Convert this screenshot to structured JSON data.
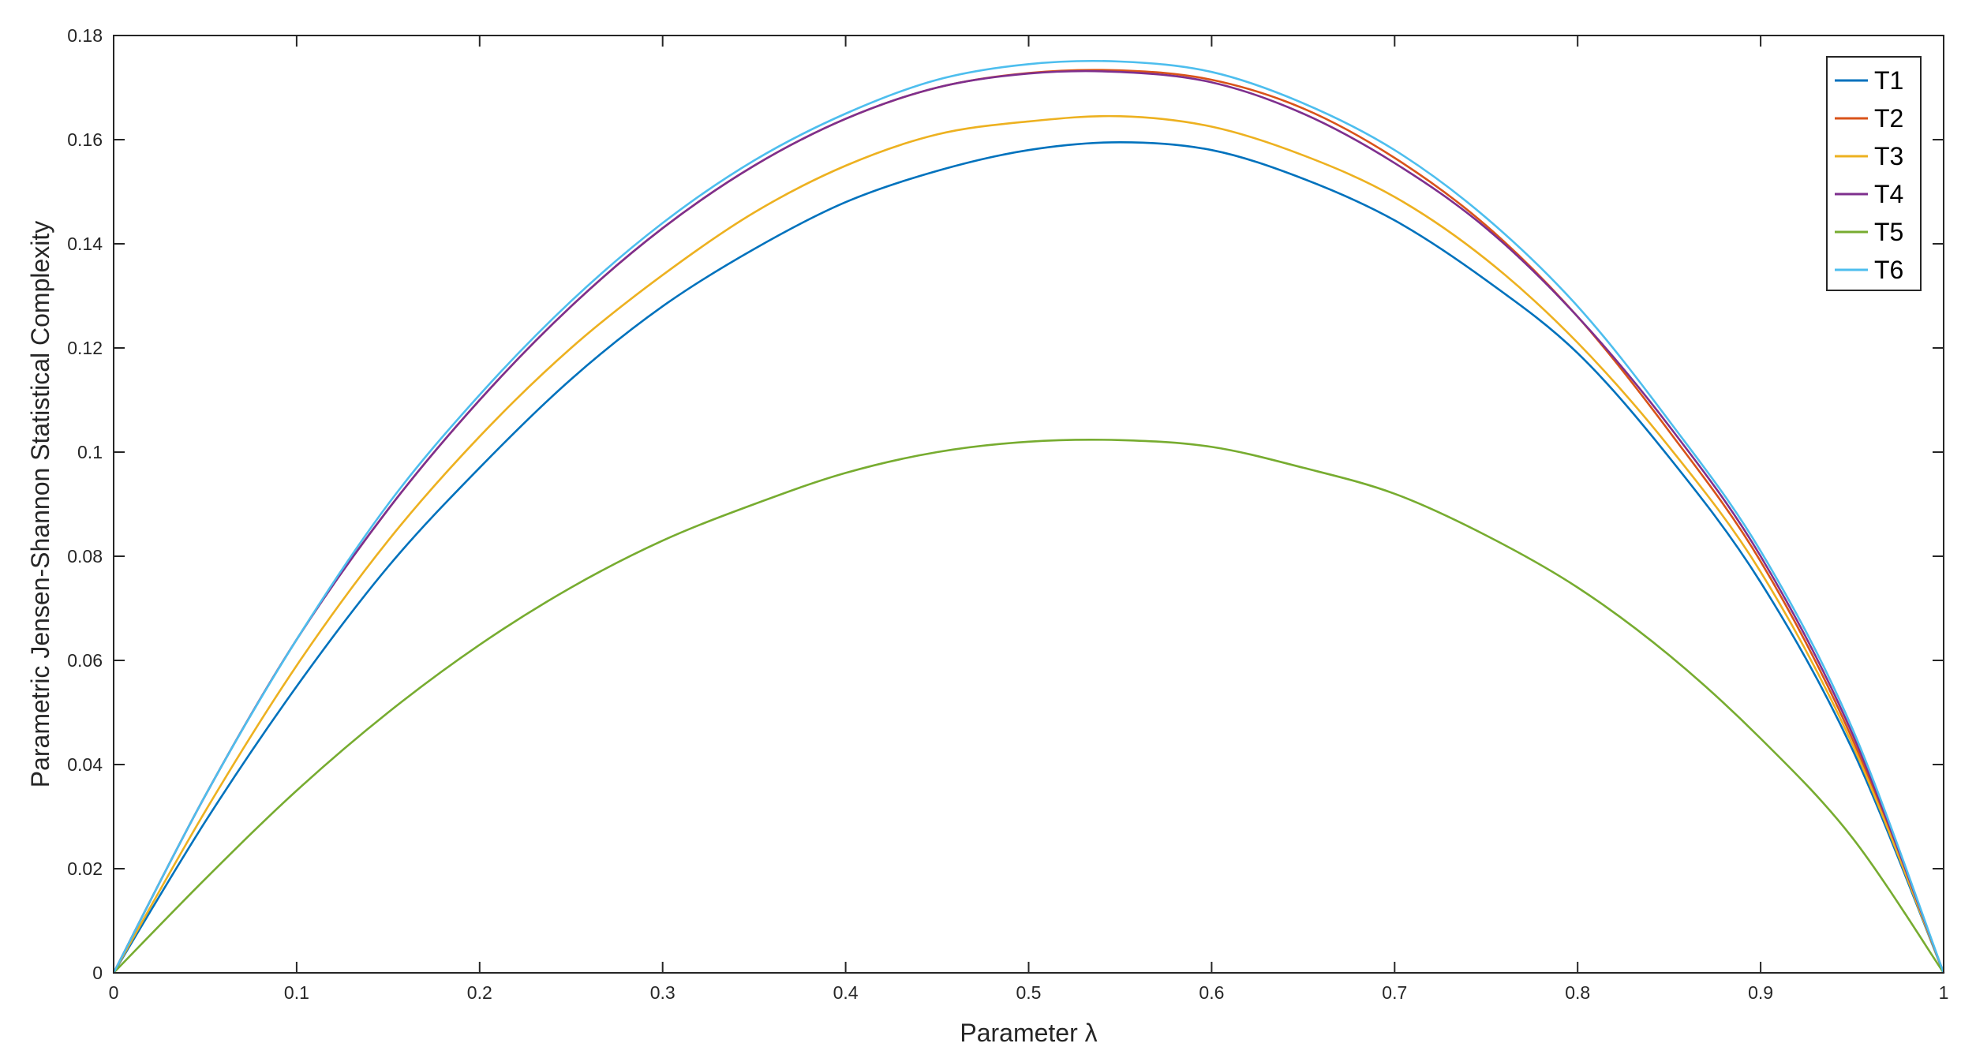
{
  "chart_data": {
    "type": "line",
    "title": "",
    "xlabel": "Parameter λ",
    "ylabel": "Parametric Jensen-Shannon Statistical Complexity",
    "xlim": [
      0,
      1
    ],
    "ylim": [
      0,
      0.18
    ],
    "grid": false,
    "legend_position": "top-right",
    "x_ticks": [
      "0",
      "0.1",
      "0.2",
      "0.3",
      "0.4",
      "0.5",
      "0.6",
      "0.7",
      "0.8",
      "0.9",
      "1"
    ],
    "y_ticks": [
      "0",
      "0.02",
      "0.04",
      "0.06",
      "0.08",
      "0.1",
      "0.12",
      "0.14",
      "0.16",
      "0.18"
    ],
    "x": [
      0,
      0.05,
      0.1,
      0.15,
      0.2,
      0.25,
      0.3,
      0.35,
      0.4,
      0.45,
      0.5,
      0.55,
      0.6,
      0.65,
      0.7,
      0.75,
      0.8,
      0.85,
      0.9,
      0.95,
      1
    ],
    "series": [
      {
        "name": "T1",
        "color": "#0072BD",
        "values": [
          0,
          0.029,
          0.055,
          0.078,
          0.097,
          0.114,
          0.128,
          0.139,
          0.148,
          0.154,
          0.158,
          0.1595,
          0.158,
          0.1525,
          0.1445,
          0.133,
          0.119,
          0.099,
          0.075,
          0.043,
          0
        ]
      },
      {
        "name": "T2",
        "color": "#D95319",
        "values": [
          0,
          0.034,
          0.064,
          0.089,
          0.11,
          0.128,
          0.143,
          0.155,
          0.164,
          0.17,
          0.1728,
          0.1733,
          0.1715,
          0.166,
          0.1565,
          0.1435,
          0.126,
          0.104,
          0.079,
          0.045,
          0
        ]
      },
      {
        "name": "T3",
        "color": "#EDB120",
        "values": [
          0,
          0.031,
          0.059,
          0.083,
          0.103,
          0.12,
          0.134,
          0.146,
          0.155,
          0.161,
          0.1635,
          0.1645,
          0.1625,
          0.157,
          0.149,
          0.137,
          0.121,
          0.101,
          0.077,
          0.044,
          0
        ]
      },
      {
        "name": "T4",
        "color": "#7E2F8E",
        "values": [
          0,
          0.034,
          0.064,
          0.089,
          0.11,
          0.128,
          0.143,
          0.155,
          0.164,
          0.17,
          0.1727,
          0.173,
          0.171,
          0.165,
          0.1555,
          0.143,
          0.126,
          0.105,
          0.08,
          0.046,
          0
        ]
      },
      {
        "name": "T5",
        "color": "#77AC30",
        "values": [
          0,
          0.018,
          0.035,
          0.05,
          0.063,
          0.074,
          0.083,
          0.09,
          0.096,
          0.1,
          0.102,
          0.1023,
          0.101,
          0.097,
          0.092,
          0.084,
          0.074,
          0.061,
          0.045,
          0.026,
          0
        ]
      },
      {
        "name": "T6",
        "color": "#4DBEEE",
        "values": [
          0,
          0.034,
          0.064,
          0.09,
          0.111,
          0.129,
          0.144,
          0.156,
          0.165,
          0.1715,
          0.1745,
          0.175,
          0.173,
          0.167,
          0.158,
          0.145,
          0.128,
          0.106,
          0.081,
          0.047,
          0
        ]
      }
    ]
  }
}
